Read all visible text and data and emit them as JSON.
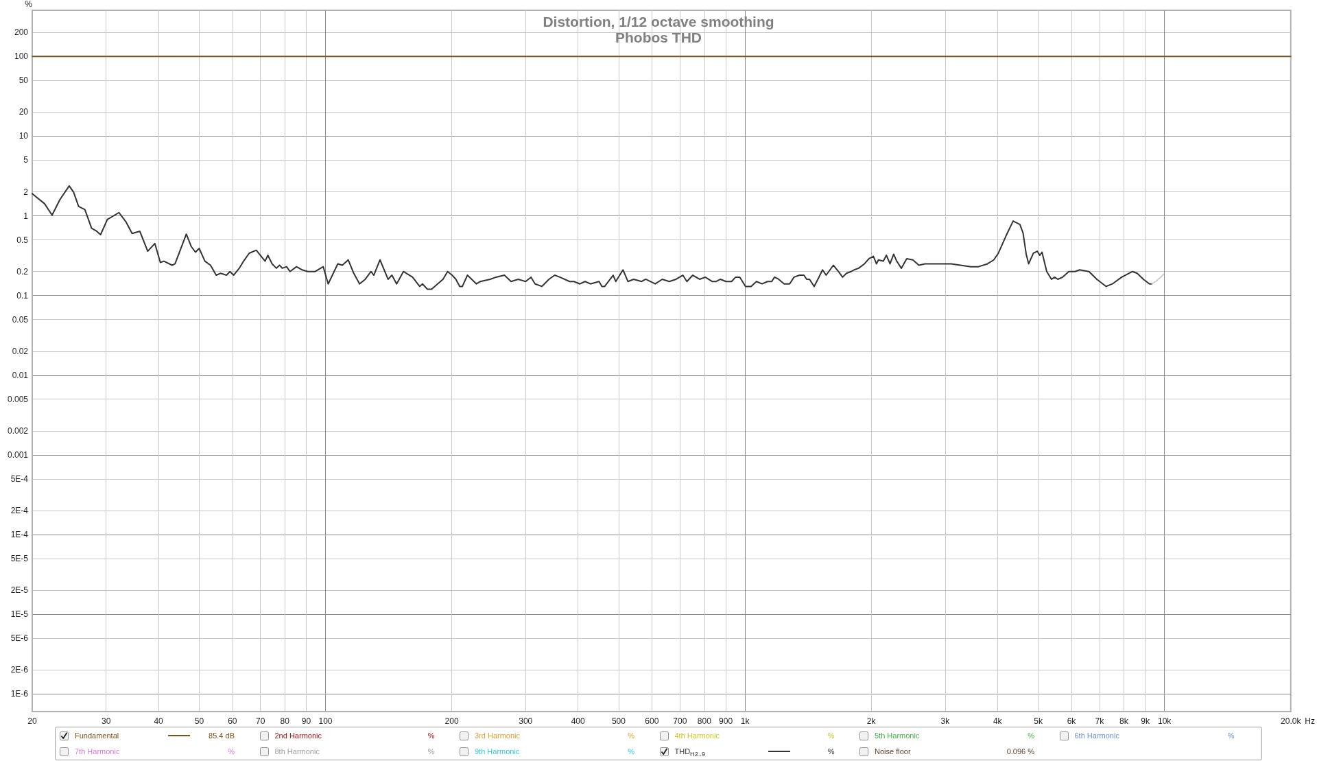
{
  "chart_data": {
    "type": "line",
    "title": "Distortion, 1/12 octave smoothing",
    "subtitle": "Phobos THD",
    "xlabel": "Hz",
    "ylabel": "%",
    "log": "xy",
    "grid": true,
    "legend": "bottom",
    "xlim": [
      20,
      20000
    ],
    "xticks": [
      20,
      30,
      40,
      50,
      60,
      70,
      80,
      90,
      100,
      200,
      300,
      400,
      500,
      600,
      700,
      800,
      900,
      {
        "value": 1000,
        "label": "1k"
      },
      {
        "value": 2000,
        "label": "2k"
      },
      {
        "value": 3000,
        "label": "3k"
      },
      {
        "value": 4000,
        "label": "4k"
      },
      {
        "value": 5000,
        "label": "5k"
      },
      {
        "value": 6000,
        "label": "6k"
      },
      {
        "value": 7000,
        "label": "7k"
      },
      {
        "value": 8000,
        "label": "8k"
      },
      {
        "value": 9000,
        "label": "9k"
      },
      {
        "value": 10000,
        "label": "10k"
      },
      {
        "value": 20000,
        "label": "20.0k"
      }
    ],
    "ylim": [
      6e-07,
      380
    ],
    "yticks": [
      {
        "value": 1e-06,
        "label": "1E-6"
      },
      {
        "value": 2e-06,
        "label": "2E-6"
      },
      {
        "value": 5e-06,
        "label": "5E-6"
      },
      {
        "value": 1e-05,
        "label": "1E-5"
      },
      {
        "value": 2e-05,
        "label": "2E-5"
      },
      {
        "value": 5e-05,
        "label": "5E-5"
      },
      {
        "value": 0.0001,
        "label": "1E-4"
      },
      {
        "value": 0.0002,
        "label": "2E-4"
      },
      {
        "value": 0.0005,
        "label": "5E-4"
      },
      0.001,
      0.002,
      0.005,
      0.01,
      0.02,
      0.05,
      0.1,
      0.2,
      0.5,
      1,
      2,
      5,
      10,
      20,
      50,
      100,
      200
    ],
    "series": [
      {
        "name": "Fundamental",
        "color": "#7f4f1a",
        "x": [
          20,
          20000
        ],
        "values": [
          100,
          100
        ]
      },
      {
        "name": "2nd Harmonic"
      },
      {
        "name": "3rd Harmonic"
      },
      {
        "name": "4th Harmonic"
      },
      {
        "name": "5th Harmonic"
      },
      {
        "name": "6th Harmonic"
      },
      {
        "name": "7th Harmonic"
      },
      {
        "name": "8th Harmonic"
      },
      {
        "name": "9th Harmonic"
      },
      {
        "name": "THD$_{H2..9}$",
        "color": "#333333",
        "x": [
          20,
          21.4,
          22.3,
          23.3,
          24.5,
          25.1,
          25.8,
          26.7,
          27.7,
          28.4,
          29.1,
          30.2,
          32.2,
          33.5,
          34.6,
          36.1,
          37.7,
          39.2,
          40.4,
          41.2,
          43.1,
          43.8,
          46.6,
          47.9,
          49,
          50,
          51.6,
          53.2,
          54.9,
          56.2,
          58.1,
          59.2,
          60.4,
          62.3,
          63.8,
          65.8,
          68.4,
          71.8,
          72.9,
          74.6,
          76.4,
          77.7,
          78.9,
          80.8,
          82.3,
          85.3,
          88,
          90.8,
          94.5,
          98.8,
          101.5,
          107,
          109.7,
          113.3,
          116.8,
          120.6,
          124.4,
          128.4,
          130.4,
          134.9,
          141,
          144,
          147.8,
          153.4,
          161.3,
          167.7,
          170.3,
          175,
          179,
          190.6,
          195.5,
          200.4,
          204.6,
          209,
          212,
          218,
          229,
          234,
          247,
          255,
          267,
          277,
          288,
          300,
          309,
          316,
          328,
          341,
          352,
          362,
          382,
          391,
          404,
          416,
          428,
          449,
          456,
          463,
          485,
          492,
          512,
          526,
          543,
          567,
          580,
          611,
          635,
          660,
          685,
          711,
          727,
          751,
          780,
          804,
          835,
          854,
          874,
          901,
          929,
          950,
          972,
          1003,
          1034,
          1065,
          1098,
          1132,
          1158,
          1176,
          1203,
          1240,
          1278,
          1309,
          1349,
          1382,
          1403,
          1425,
          1462,
          1492,
          1531,
          1561,
          1625,
          1670,
          1709,
          1746,
          1791,
          1821,
          1866,
          1927,
          1975,
          2024,
          2058,
          2081,
          2137,
          2173,
          2217,
          2262,
          2300,
          2359,
          2430,
          2513,
          2598,
          2687,
          2825,
          2898,
          3100,
          3262,
          3455,
          3602,
          3786,
          3918,
          4018,
          4190,
          4357,
          4523,
          4601,
          4681,
          4745,
          4870,
          4974,
          5043,
          5106,
          5240,
          5379,
          5472,
          5570,
          5716,
          5914,
          6117,
          6277,
          6609,
          6898,
          7261,
          7513,
          7906,
          8391,
          8607,
          8906,
          9212,
          9338
        ],
        "values": [
          1.9,
          1.42,
          1.02,
          1.61,
          2.38,
          1.98,
          1.31,
          1.2,
          0.7,
          0.65,
          0.58,
          0.9,
          1.1,
          0.83,
          0.6,
          0.64,
          0.36,
          0.45,
          0.26,
          0.27,
          0.24,
          0.25,
          0.59,
          0.41,
          0.35,
          0.39,
          0.27,
          0.24,
          0.18,
          0.19,
          0.18,
          0.2,
          0.18,
          0.22,
          0.27,
          0.34,
          0.37,
          0.27,
          0.32,
          0.25,
          0.22,
          0.24,
          0.22,
          0.23,
          0.2,
          0.23,
          0.21,
          0.2,
          0.2,
          0.23,
          0.14,
          0.25,
          0.24,
          0.28,
          0.19,
          0.14,
          0.16,
          0.2,
          0.18,
          0.28,
          0.16,
          0.18,
          0.14,
          0.2,
          0.17,
          0.13,
          0.14,
          0.12,
          0.12,
          0.16,
          0.2,
          0.18,
          0.16,
          0.13,
          0.13,
          0.18,
          0.14,
          0.15,
          0.16,
          0.17,
          0.18,
          0.15,
          0.16,
          0.15,
          0.17,
          0.14,
          0.13,
          0.16,
          0.18,
          0.17,
          0.15,
          0.15,
          0.14,
          0.15,
          0.14,
          0.15,
          0.13,
          0.13,
          0.18,
          0.15,
          0.21,
          0.15,
          0.16,
          0.15,
          0.16,
          0.14,
          0.16,
          0.15,
          0.16,
          0.18,
          0.15,
          0.18,
          0.16,
          0.17,
          0.15,
          0.15,
          0.16,
          0.15,
          0.15,
          0.17,
          0.17,
          0.13,
          0.13,
          0.15,
          0.14,
          0.15,
          0.15,
          0.17,
          0.16,
          0.14,
          0.14,
          0.17,
          0.18,
          0.18,
          0.16,
          0.16,
          0.13,
          0.16,
          0.21,
          0.18,
          0.24,
          0.2,
          0.17,
          0.19,
          0.2,
          0.21,
          0.22,
          0.25,
          0.29,
          0.31,
          0.25,
          0.28,
          0.27,
          0.32,
          0.25,
          0.33,
          0.27,
          0.22,
          0.29,
          0.28,
          0.24,
          0.25,
          0.25,
          0.25,
          0.25,
          0.24,
          0.23,
          0.23,
          0.25,
          0.28,
          0.34,
          0.56,
          0.86,
          0.78,
          0.61,
          0.33,
          0.25,
          0.34,
          0.36,
          0.32,
          0.35,
          0.2,
          0.16,
          0.17,
          0.16,
          0.17,
          0.2,
          0.2,
          0.21,
          0.2,
          0.16,
          0.13,
          0.14,
          0.17,
          0.2,
          0.19,
          0.16,
          0.14,
          0.14
        ]
      },
      {
        "name": "Noise floor"
      },
      {
        "color": "#c8c8c8",
        "line_style": "dotted",
        "x": [
          9338,
          9530,
          9800,
          10000
        ],
        "values": [
          0.14,
          0.15,
          0.17,
          0.19
        ]
      }
    ],
    "annotations": [
      "85.4 dB",
      "%",
      "%",
      "%",
      "%",
      "%",
      "%",
      "%",
      "%",
      "%",
      "0.096 %"
    ]
  }
}
